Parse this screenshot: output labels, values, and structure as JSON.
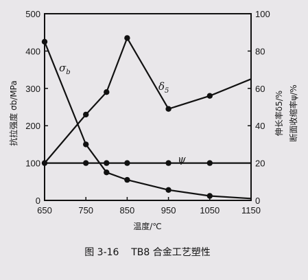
{
  "chart_data": {
    "type": "line",
    "x": [
      650,
      750,
      800,
      850,
      950,
      1050,
      1150
    ],
    "x_ticks": [
      650,
      750,
      850,
      950,
      1050,
      1150
    ],
    "xlim": [
      650,
      1150
    ],
    "xlabel": "温度/℃",
    "y_left": {
      "label": "抗拉强度 σb/MPa",
      "ticks": [
        0,
        100,
        200,
        300,
        400,
        500
      ],
      "lim": [
        0,
        500
      ]
    },
    "y_right": {
      "label_1": "伸长率δ5/%",
      "label_2": "断面收缩率ψ/%",
      "ticks": [
        0,
        20,
        40,
        60,
        80,
        100
      ],
      "lim": [
        0,
        100
      ]
    },
    "series": [
      {
        "name": "σb",
        "axis": "left",
        "x": [
          650,
          750,
          800,
          850,
          950,
          1050,
          1150
        ],
        "values": [
          425,
          150,
          75,
          55,
          28,
          12,
          5
        ]
      },
      {
        "name": "δ5",
        "axis": "right",
        "x": [
          650,
          750,
          800,
          850,
          950,
          1050,
          1150
        ],
        "values": [
          20,
          46,
          58,
          87,
          49,
          56,
          65
        ]
      },
      {
        "name": "ψ",
        "axis": "right",
        "x": [
          650,
          750,
          800,
          850,
          950,
          1050,
          1150
        ],
        "values": [
          20,
          20,
          20,
          20,
          20,
          20,
          20
        ]
      }
    ],
    "caption": "图 3-16    TB8 合金工艺塑性",
    "grid": false
  }
}
